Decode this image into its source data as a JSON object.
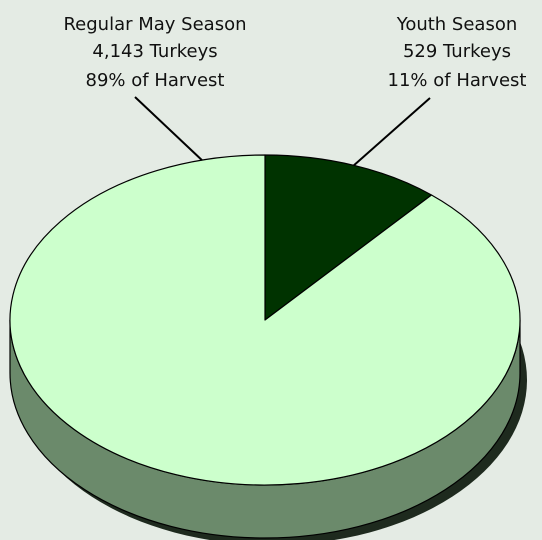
{
  "chart_data": {
    "type": "pie",
    "title": "",
    "slices": [
      {
        "name": "Regular May Season",
        "count_label": "4,143 Turkeys",
        "pct_label": "89% of Harvest",
        "value": 4143,
        "percent": 89,
        "color": "#ccffcc"
      },
      {
        "name": "Youth Season",
        "count_label": "529 Turkeys",
        "pct_label": "11% of Harvest",
        "value": 529,
        "percent": 11,
        "color": "#003300"
      }
    ],
    "style": {
      "pie3d": true,
      "side_color": "#6b8a6b",
      "shadow_color": "#1e2a1e",
      "background": "#e4ebe4"
    }
  }
}
